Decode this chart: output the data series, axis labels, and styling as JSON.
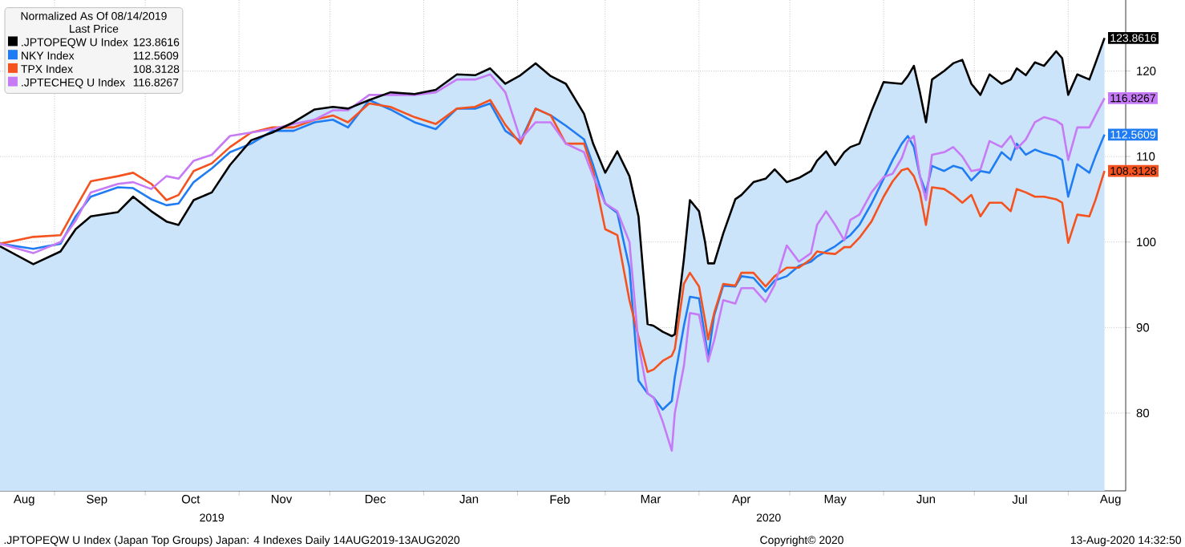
{
  "chart_data": {
    "type": "line",
    "legend_title": "Normalized As Of 08/14/2019",
    "subtitle": "Last Price",
    "annotations": [
      ".JPTOPEQW U Index (Japan Top Groups) Japan: 4 Indexes  Daily 14AUG2019-13AUG2020",
      "Copyright© 2020",
      "13-Aug-2020 14:32:50"
    ],
    "x": [
      "2019-08-14",
      "2019-08-25",
      "2019-09-03",
      "2019-09-08",
      "2019-09-13",
      "2019-09-22",
      "2019-09-27",
      "2019-10-03",
      "2019-10-08",
      "2019-10-12",
      "2019-10-17",
      "2019-10-23",
      "2019-10-29",
      "2019-11-05",
      "2019-11-12",
      "2019-11-19",
      "2019-11-26",
      "2019-12-02",
      "2019-12-07",
      "2019-12-14",
      "2019-12-21",
      "2019-12-29",
      "2020-01-05",
      "2020-01-12",
      "2020-01-18",
      "2020-01-23",
      "2020-01-28",
      "2020-02-02",
      "2020-02-07",
      "2020-02-12",
      "2020-02-17",
      "2020-02-23",
      "2020-02-26",
      "2020-03-01",
      "2020-03-05",
      "2020-03-09",
      "2020-03-12",
      "2020-03-15",
      "2020-03-17",
      "2020-03-20",
      "2020-03-23",
      "2020-03-24",
      "2020-03-27",
      "2020-03-29",
      "2020-04-01",
      "2020-04-03",
      "2020-04-04",
      "2020-04-06",
      "2020-04-09",
      "2020-04-13",
      "2020-04-15",
      "2020-04-19",
      "2020-04-23",
      "2020-04-26",
      "2020-04-30",
      "2020-05-04",
      "2020-05-08",
      "2020-05-10",
      "2020-05-13",
      "2020-05-16",
      "2020-05-19",
      "2020-05-21",
      "2020-05-24",
      "2020-05-28",
      "2020-06-01",
      "2020-06-04",
      "2020-06-07",
      "2020-06-09",
      "2020-06-11",
      "2020-06-13",
      "2020-06-15",
      "2020-06-17",
      "2020-06-21",
      "2020-06-24",
      "2020-06-27",
      "2020-06-30",
      "2020-07-03",
      "2020-07-06",
      "2020-07-10",
      "2020-07-13",
      "2020-07-15",
      "2020-07-18",
      "2020-07-21",
      "2020-07-24",
      "2020-07-28",
      "2020-07-30",
      "2020-08-01",
      "2020-08-04",
      "2020-08-08",
      "2020-08-10",
      "2020-08-13"
    ],
    "series": [
      {
        "type": "area",
        "name": ".JPTOPEQW U Index",
        "color": "#000000",
        "values": [
          99.5,
          97.4,
          98.9,
          101.5,
          103,
          103.5,
          105.3,
          103.6,
          102.4,
          102,
          104.9,
          105.8,
          109,
          111.9,
          112.8,
          114,
          115.5,
          115.8,
          115.6,
          116.6,
          117.5,
          117.3,
          117.8,
          119.6,
          119.5,
          120.3,
          118.5,
          119.5,
          120.9,
          119.4,
          118.5,
          115,
          111.5,
          108.1,
          110.6,
          107.7,
          103,
          90.4,
          90.2,
          89.5,
          89,
          89.2,
          98,
          104.9,
          103.6,
          100,
          97.5,
          97.5,
          101,
          105,
          105.5,
          107,
          107.4,
          108.5,
          107,
          107.5,
          108.3,
          109.5,
          110.6,
          109,
          110.5,
          111.1,
          111.5,
          115.3,
          118.7,
          118.6,
          118.5,
          119.4,
          120.6,
          117.5,
          114,
          119,
          120,
          120.9,
          121.3,
          118.5,
          117.2,
          119.6,
          118.5,
          119,
          120.3,
          119.5,
          121,
          120.6,
          122.3,
          121.5,
          117.2,
          119.6,
          119,
          120.9,
          123.8616
        ],
        "value_labels": [
          null,
          null,
          null,
          null,
          null,
          null,
          null,
          null,
          null,
          null,
          null,
          null,
          null,
          null,
          null,
          null,
          null,
          null,
          null,
          null,
          null,
          null,
          null,
          null,
          null,
          null,
          null,
          null,
          null,
          null,
          null,
          null,
          null,
          null,
          null,
          null,
          null,
          null,
          null,
          null,
          null,
          null,
          null,
          null,
          null,
          null,
          null,
          null,
          null,
          null,
          null,
          null,
          null,
          null,
          null,
          null,
          null,
          null,
          null,
          null,
          null,
          null,
          null,
          null,
          null,
          null,
          null,
          null,
          null,
          null,
          null,
          null,
          null,
          null,
          null,
          null,
          null,
          null,
          null,
          null,
          null,
          null,
          null,
          null,
          null,
          null,
          null,
          null,
          null,
          null,
          "123.8616"
        ]
      },
      {
        "name": "NKY Index",
        "color": "#1f7cf2",
        "values": [
          99.8,
          99.2,
          99.8,
          103,
          105.3,
          106.4,
          106.3,
          105,
          104.3,
          104.5,
          107,
          108.6,
          110.5,
          111.5,
          113,
          113,
          114,
          114.3,
          113.4,
          116.6,
          115.5,
          114,
          113.2,
          115.6,
          115.6,
          116.2,
          113,
          111.8,
          115.6,
          114.8,
          113.6,
          112,
          109,
          104.5,
          103.4,
          97,
          83.8,
          82.3,
          81.8,
          80.4,
          81.4,
          84.2,
          90.2,
          93.6,
          93.4,
          88.9,
          86.5,
          91.4,
          94.9,
          94.8,
          96,
          95.8,
          94.2,
          95.5,
          96,
          97.2,
          97.7,
          98.3,
          98.9,
          99.5,
          100.3,
          100.8,
          102,
          104.5,
          107.4,
          109.6,
          111.5,
          112.4,
          111.1,
          107.7,
          105.8,
          108.9,
          108.3,
          108.9,
          108.6,
          107.2,
          108.3,
          108.1,
          110.5,
          109.6,
          111.5,
          110.2,
          110.8,
          110.4,
          110,
          109.6,
          105.3,
          109.1,
          108.1,
          110,
          112.5609
        ],
        "value_labels": [
          null,
          null,
          null,
          null,
          null,
          null,
          null,
          null,
          null,
          null,
          null,
          null,
          null,
          null,
          null,
          null,
          null,
          null,
          null,
          null,
          null,
          null,
          null,
          null,
          null,
          null,
          null,
          null,
          null,
          null,
          null,
          null,
          null,
          null,
          null,
          null,
          null,
          null,
          null,
          null,
          null,
          null,
          null,
          null,
          null,
          null,
          null,
          null,
          null,
          null,
          null,
          null,
          null,
          null,
          null,
          null,
          null,
          null,
          null,
          null,
          null,
          null,
          null,
          null,
          null,
          null,
          null,
          null,
          null,
          null,
          null,
          null,
          null,
          null,
          null,
          null,
          null,
          null,
          null,
          null,
          null,
          null,
          null,
          null,
          null,
          null,
          null,
          null,
          null,
          null,
          "112.5609"
        ]
      },
      {
        "name": "TPX Index",
        "color": "#f4521e",
        "values": [
          99.8,
          100.6,
          100.8,
          104,
          107.1,
          107.7,
          108.1,
          106.8,
          104.9,
          105.5,
          108.3,
          109.2,
          111.1,
          112.8,
          113.4,
          113.4,
          114.3,
          114.8,
          114,
          116.2,
          115.8,
          114.6,
          113.8,
          115.6,
          115.8,
          116.6,
          113.7,
          111.5,
          115.6,
          114.8,
          111.5,
          111.5,
          108.3,
          101.5,
          100.8,
          93.2,
          88.9,
          84.8,
          85.1,
          86.1,
          86.7,
          87.5,
          95.1,
          96.4,
          94.8,
          90.8,
          88.6,
          91.7,
          95.1,
          94.9,
          96.4,
          96.4,
          94.8,
          96,
          97,
          97,
          98,
          98.9,
          98.7,
          98.6,
          99.4,
          99.4,
          100.5,
          102.4,
          105.3,
          107.1,
          108.4,
          108.6,
          107.7,
          105.8,
          102,
          106.4,
          106.2,
          105.5,
          104.6,
          105.5,
          103,
          104.6,
          104.6,
          103.6,
          106.2,
          105.8,
          105.3,
          105.3,
          105,
          104.6,
          99.9,
          103.2,
          103,
          104.9,
          108.3128
        ],
        "value_labels": [
          null,
          null,
          null,
          null,
          null,
          null,
          null,
          null,
          null,
          null,
          null,
          null,
          null,
          null,
          null,
          null,
          null,
          null,
          null,
          null,
          null,
          null,
          null,
          null,
          null,
          null,
          null,
          null,
          null,
          null,
          null,
          null,
          null,
          null,
          null,
          null,
          null,
          null,
          null,
          null,
          null,
          null,
          null,
          null,
          null,
          null,
          null,
          null,
          null,
          null,
          null,
          null,
          null,
          null,
          null,
          null,
          null,
          null,
          null,
          null,
          null,
          null,
          null,
          null,
          null,
          null,
          null,
          null,
          null,
          null,
          null,
          null,
          null,
          null,
          null,
          null,
          null,
          null,
          null,
          null,
          null,
          null,
          null,
          null,
          null,
          null,
          null,
          null,
          null,
          null,
          "108.3128"
        ]
      },
      {
        "name": ".JPTECHEQ U Index",
        "color": "#c77af5",
        "values": [
          99.8,
          98.7,
          100,
          102.5,
          105.8,
          106.8,
          107,
          106.2,
          107.7,
          107.4,
          109.5,
          110.2,
          112.4,
          112.8,
          113.2,
          113.8,
          114.3,
          115.4,
          115.4,
          117.2,
          117.2,
          117.2,
          117.5,
          119,
          119,
          119.6,
          117.5,
          112,
          114,
          114,
          111.5,
          110.5,
          107.7,
          104.5,
          103.6,
          100,
          88,
          82.3,
          81.8,
          79,
          75.6,
          80,
          85.5,
          91.7,
          91.5,
          88,
          86,
          88.5,
          93.2,
          92.8,
          94.6,
          94.6,
          93,
          95,
          99.6,
          97.7,
          98.7,
          102,
          103.6,
          102,
          100.2,
          102.6,
          103.2,
          105.8,
          107.6,
          108,
          109.8,
          111.8,
          112.4,
          107.7,
          104.9,
          110.2,
          110.5,
          111.1,
          110,
          108.3,
          108.5,
          111.8,
          111.1,
          112.4,
          110.9,
          112,
          114,
          114.6,
          114.2,
          113.7,
          109.6,
          113.4,
          113.4,
          114.8,
          116.8267
        ],
        "value_labels": [
          null,
          null,
          null,
          null,
          null,
          null,
          null,
          null,
          null,
          null,
          null,
          null,
          null,
          null,
          null,
          null,
          null,
          null,
          null,
          null,
          null,
          null,
          null,
          null,
          null,
          null,
          null,
          null,
          null,
          null,
          null,
          null,
          null,
          null,
          null,
          null,
          null,
          null,
          null,
          null,
          null,
          null,
          null,
          null,
          null,
          null,
          null,
          null,
          null,
          null,
          null,
          null,
          null,
          null,
          null,
          null,
          null,
          null,
          null,
          null,
          null,
          null,
          null,
          null,
          null,
          null,
          null,
          null,
          null,
          null,
          null,
          null,
          null,
          null,
          null,
          null,
          null,
          null,
          null,
          null,
          null,
          null,
          null,
          null,
          null,
          null,
          null,
          null,
          null,
          null,
          "116.8267"
        ]
      }
    ],
    "xlim": [
      "2019-08-14",
      "2020-08-20"
    ],
    "xticks": [
      {
        "value": "2019-08-22",
        "label": "Aug"
      },
      {
        "value": "2019-09-01",
        "label": null
      },
      {
        "value": "2019-09-15",
        "label": "Sep"
      },
      {
        "value": "2019-10-01",
        "label": null
      },
      {
        "value": "2019-10-16",
        "label": "Oct"
      },
      {
        "value": "2019-11-01",
        "label": null
      },
      {
        "value": "2019-11-15",
        "label": "Nov"
      },
      {
        "value": "2019-12-01",
        "label": null
      },
      {
        "value": "2019-12-16",
        "label": "Dec"
      },
      {
        "value": "2020-01-01",
        "label": null
      },
      {
        "value": "2020-01-16",
        "label": "Jan"
      },
      {
        "value": "2020-02-01",
        "label": null
      },
      {
        "value": "2020-02-15",
        "label": "Feb"
      },
      {
        "value": "2020-03-01",
        "label": null
      },
      {
        "value": "2020-03-16",
        "label": "Mar"
      },
      {
        "value": "2020-04-01",
        "label": null
      },
      {
        "value": "2020-04-15",
        "label": "Apr"
      },
      {
        "value": "2020-05-01",
        "label": null
      },
      {
        "value": "2020-05-16",
        "label": "May"
      },
      {
        "value": "2020-06-01",
        "label": null
      },
      {
        "value": "2020-06-15",
        "label": "Jun"
      },
      {
        "value": "2020-07-01",
        "label": null
      },
      {
        "value": "2020-07-16",
        "label": "Jul"
      },
      {
        "value": "2020-08-01",
        "label": null
      },
      {
        "value": "2020-08-15",
        "label": "Aug"
      }
    ],
    "x2lim": [
      "2019-08-14",
      "2020-08-20"
    ],
    "x2ticks": [
      {
        "value": "2019-10-23",
        "label": "2019"
      },
      {
        "value": "2020-04-24",
        "label": "2020"
      }
    ],
    "ylim": [
      70.9,
      128.3
    ],
    "yticks": [
      80,
      90,
      100,
      110,
      120
    ],
    "grid": true,
    "legend": "top left"
  }
}
